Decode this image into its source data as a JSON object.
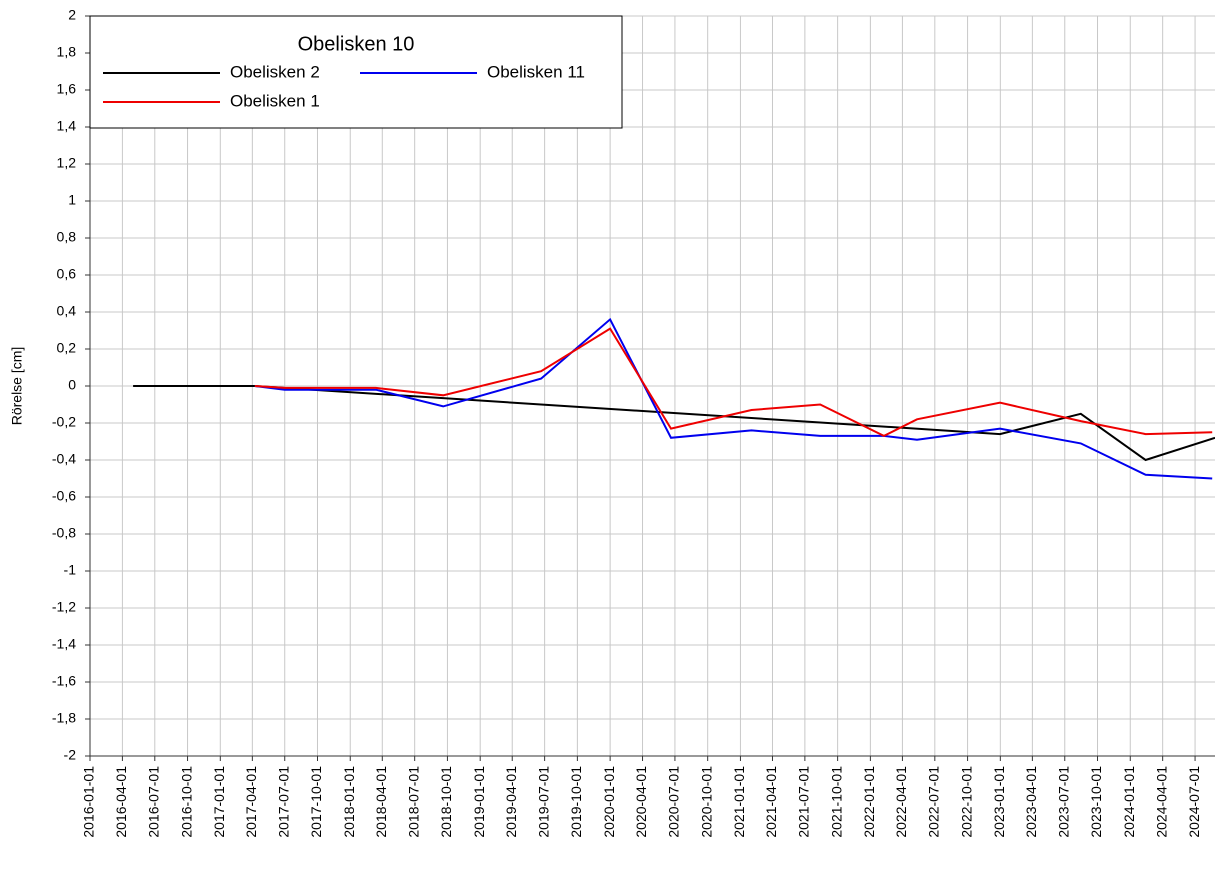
{
  "chart_data": {
    "type": "line",
    "legend_title": "Obelisken 10",
    "y_label": "Rörelse [cm]",
    "xlim": [
      "2016-01-01",
      "2024-08-26"
    ],
    "xticks": [
      "2016-01-01",
      "2016-04-01",
      "2016-07-01",
      "2016-10-01",
      "2017-01-01",
      "2017-04-01",
      "2017-07-01",
      "2017-10-01",
      "2018-01-01",
      "2018-04-01",
      "2018-07-01",
      "2018-10-01",
      "2019-01-01",
      "2019-04-01",
      "2019-07-01",
      "2019-10-01",
      "2020-01-01",
      "2020-04-01",
      "2020-07-01",
      "2020-10-01",
      "2021-01-01",
      "2021-04-01",
      "2021-07-01",
      "2021-10-01",
      "2022-01-01",
      "2022-04-01",
      "2022-07-01",
      "2022-10-01",
      "2023-01-01",
      "2023-04-01",
      "2023-07-01",
      "2023-10-01",
      "2024-01-01",
      "2024-04-01",
      "2024-07-01"
    ],
    "ylim": [
      -2,
      2
    ],
    "yticks": [
      {
        "value": -2,
        "label": "-2"
      },
      {
        "value": -1.8,
        "label": "-1,8"
      },
      {
        "value": -1.6,
        "label": "-1,6"
      },
      {
        "value": -1.4,
        "label": "-1,4"
      },
      {
        "value": -1.2,
        "label": "-1,2"
      },
      -1,
      {
        "value": -0.8,
        "label": "-0,8"
      },
      {
        "value": -0.6,
        "label": "-0,6"
      },
      {
        "value": -0.4,
        "label": "-0,4"
      },
      {
        "value": -0.2,
        "label": "-0,2"
      },
      0,
      {
        "value": 0.2,
        "label": "0,2"
      },
      {
        "value": 0.4,
        "label": "0,4"
      },
      {
        "value": 0.6,
        "label": "0,6"
      },
      {
        "value": 0.8,
        "label": "0,8"
      },
      1,
      {
        "value": 1.2,
        "label": "1,2"
      },
      {
        "value": 1.4,
        "label": "1,4"
      },
      {
        "value": 1.6,
        "label": "1,6"
      },
      {
        "value": 1.8,
        "label": "1,8"
      },
      2
    ],
    "grid": true,
    "legend": "upper left",
    "series": [
      {
        "name": "Obelisken 2",
        "color": "#000000",
        "x": [
          "2016-05-01",
          "2017-04-08",
          "2022-12-31",
          "2023-08-15",
          "2024-02-13",
          "2024-08-26"
        ],
        "values": [
          0,
          0,
          -0.26,
          -0.15,
          -0.4,
          -0.28
        ]
      },
      {
        "name": "Obelisken 11",
        "color": "#0000ee",
        "x": [
          "2017-04-08",
          "2017-07-01",
          "2018-03-14",
          "2018-09-19",
          "2019-06-21",
          "2020-01-01",
          "2020-06-20",
          "2021-02-01",
          "2021-08-13",
          "2022-02-08",
          "2022-05-12",
          "2022-12-31",
          "2023-08-15",
          "2024-02-13",
          "2024-08-18"
        ],
        "values": [
          0,
          -0.02,
          -0.02,
          -0.11,
          0.04,
          0.36,
          -0.28,
          -0.24,
          -0.27,
          -0.27,
          -0.29,
          -0.23,
          -0.31,
          -0.48,
          -0.5
        ]
      },
      {
        "name": "Obelisken 1",
        "color": "#ee0000",
        "x": [
          "2017-04-08",
          "2017-07-01",
          "2018-03-14",
          "2018-09-19",
          "2019-06-21",
          "2020-01-01",
          "2020-06-20",
          "2021-02-01",
          "2021-08-13",
          "2022-02-08",
          "2022-05-12",
          "2022-12-31",
          "2023-08-15",
          "2024-02-13",
          "2024-08-18"
        ],
        "values": [
          0,
          -0.01,
          -0.01,
          -0.05,
          0.08,
          0.31,
          -0.23,
          -0.13,
          -0.1,
          -0.27,
          -0.18,
          -0.09,
          -0.19,
          -0.26,
          -0.25
        ]
      }
    ]
  }
}
